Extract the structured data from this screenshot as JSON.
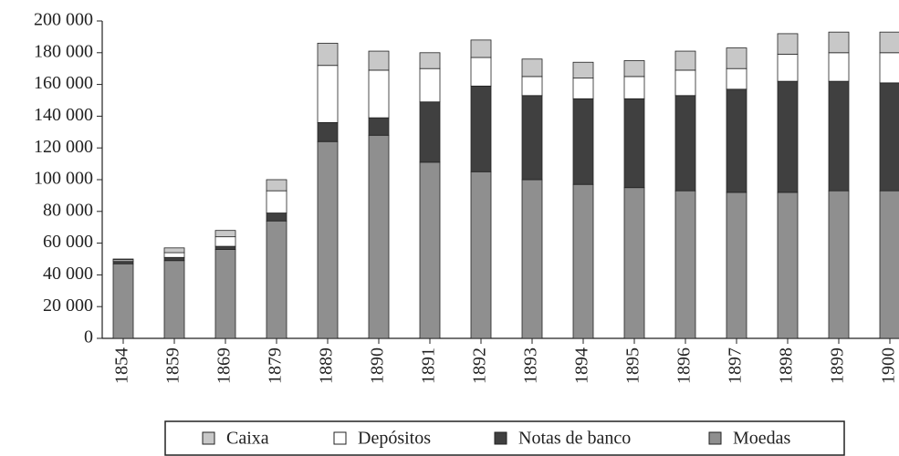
{
  "chart_data": {
    "type": "stacked_bar",
    "categories": [
      "1854",
      "1859",
      "1869",
      "1879",
      "1889",
      "1890",
      "1891",
      "1892",
      "1893",
      "1894",
      "1895",
      "1896",
      "1897",
      "1898",
      "1899",
      "1900"
    ],
    "series": [
      {
        "name": "Moedas",
        "color": "#8f8f8f",
        "values": [
          47000,
          49000,
          56000,
          74000,
          124000,
          128000,
          111000,
          105000,
          100000,
          97000,
          95000,
          93000,
          92000,
          92000,
          93000,
          93000
        ]
      },
      {
        "name": "Notas de banco",
        "color": "#404040",
        "values": [
          1500,
          2000,
          2000,
          5000,
          12000,
          11000,
          38000,
          54000,
          53000,
          54000,
          56000,
          60000,
          65000,
          70000,
          69000,
          68000
        ]
      },
      {
        "name": "Depósitos",
        "color": "#ffffff",
        "values": [
          1000,
          3000,
          6000,
          14000,
          36000,
          30000,
          21000,
          18000,
          12000,
          13000,
          14000,
          16000,
          13000,
          17000,
          18000,
          19000
        ]
      },
      {
        "name": "Caixa",
        "color": "#c8c8c8",
        "values": [
          500,
          3000,
          4000,
          7000,
          14000,
          12000,
          10000,
          11000,
          11000,
          10000,
          10000,
          12000,
          13000,
          13000,
          13000,
          13000
        ]
      }
    ],
    "ylim": [
      0,
      200000
    ],
    "yticks": [
      0,
      {
        "value": 20000,
        "label": "20 000"
      },
      {
        "value": 40000,
        "label": "40 000"
      },
      {
        "value": 60000,
        "label": "60 000"
      },
      {
        "value": 80000,
        "label": "80 000"
      },
      {
        "value": 100000,
        "label": "100 000"
      },
      {
        "value": 120000,
        "label": "120 000"
      },
      {
        "value": 140000,
        "label": "140 000"
      },
      {
        "value": 160000,
        "label": "160 000"
      },
      {
        "value": 180000,
        "label": "180 000"
      },
      {
        "value": 200000,
        "label": "200 000"
      }
    ],
    "legend": "bottom"
  }
}
